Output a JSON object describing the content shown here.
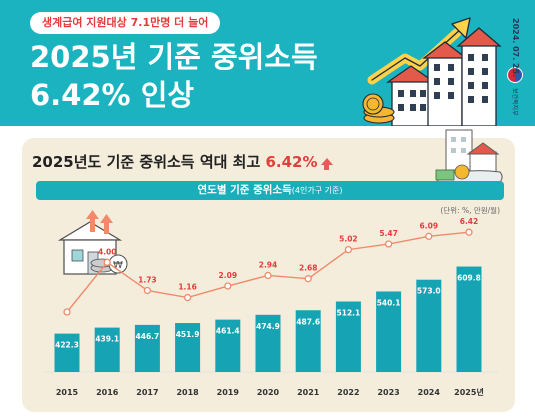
{
  "header": {
    "badge": "생계급여 지원대상 7.1만명 더 늘어",
    "title_line1": "2025년 기준 중위소득",
    "title_line2": "6.42% 인상",
    "date": "2024. 07. 25.",
    "ministry": "보건복지부"
  },
  "panel": {
    "title_prefix": "2025년도 기준 중위소득 역대 최고 ",
    "title_highlight": "6.42%",
    "subtitle": "연도별 기준 중위소득",
    "subtitle_small": "(4인가구 기준)",
    "unit": "(단위: %, 만원/월)"
  },
  "colors": {
    "header_bg": "#1bb3bf",
    "bar": "#16a3b3",
    "line": "#f08a6a",
    "highlight": "#e23c3c",
    "panel_bg": "#f4eddc"
  },
  "chart_data": {
    "type": "bar",
    "title": "연도별 기준 중위소득",
    "categories": [
      "2015",
      "2016",
      "2017",
      "2018",
      "2019",
      "2020",
      "2021",
      "2022",
      "2023",
      "2024",
      "2025년"
    ],
    "series": [
      {
        "type": "bar",
        "values": [
          422.3,
          439.1,
          446.7,
          451.9,
          461.4,
          474.9,
          487.6,
          512.1,
          540.1,
          573.0,
          609.8
        ]
      },
      {
        "type": "line",
        "values": [
          null,
          4.0,
          1.73,
          1.16,
          2.09,
          2.94,
          2.68,
          5.02,
          5.47,
          6.09,
          6.42
        ]
      }
    ],
    "bar_labels": [
      "422.3",
      "439.1",
      "446.7",
      "451.9",
      "461.4",
      "474.9",
      "487.6",
      "512.1",
      "540.1",
      "573.0",
      "609.8"
    ],
    "line_labels": [
      "",
      "4.00",
      "1.73",
      "1.16",
      "2.09",
      "2.94",
      "2.68",
      "5.02",
      "5.47",
      "6.09",
      "6.42"
    ],
    "unit": "(단위: %, 만원/월)",
    "grid": false,
    "legend": "none"
  }
}
